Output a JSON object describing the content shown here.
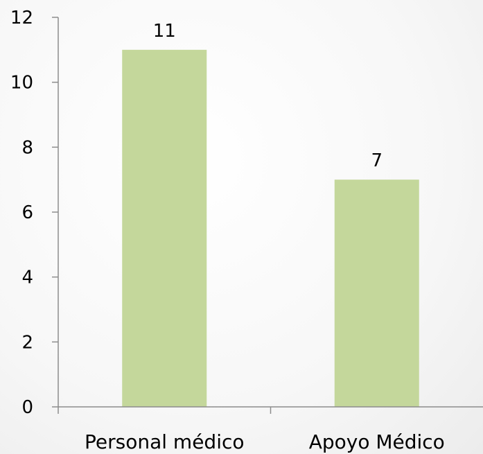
{
  "chart_data": {
    "type": "bar",
    "categories": [
      "Personal médico",
      "Apoyo Médico"
    ],
    "values": [
      11,
      7
    ],
    "data_labels": [
      "11",
      "7"
    ],
    "ylim": [
      0,
      12
    ],
    "yticks": [
      "0",
      "2",
      "4",
      "6",
      "8",
      "10",
      "12"
    ],
    "title": "",
    "xlabel": "",
    "ylabel": "",
    "grid": false,
    "legend": "none",
    "bar_color": "#c4d79b",
    "axis_color": "#8c8c8c"
  }
}
